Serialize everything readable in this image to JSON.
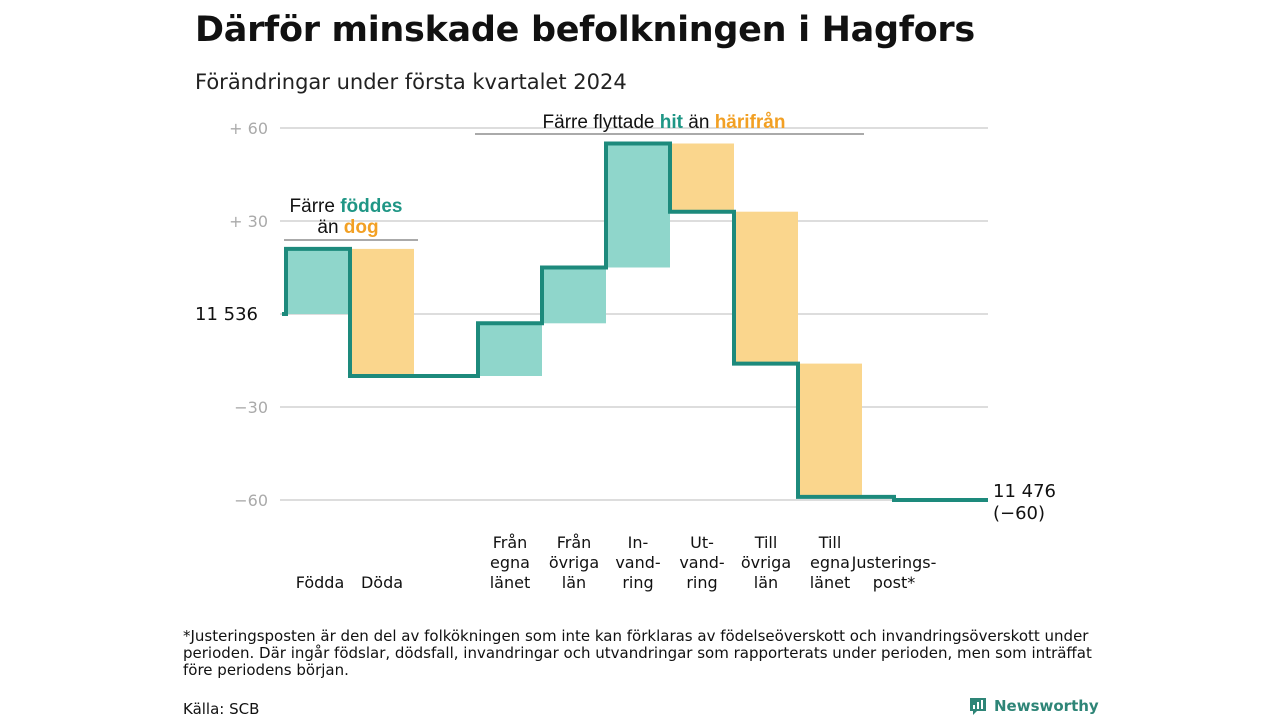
{
  "title": "Därför minskade befolkningen i Hagfors",
  "subtitle": "Förändringar under första kvartalet 2024",
  "footnote": "*Justeringsposten är den del av folkökningen som inte kan förklaras av födelseöverskott och invandringsöverskott under perioden. Där ingår födslar, dödsfall, invandringar och utvandringar som rapporterats under perioden, men som inträffat före periodens början.",
  "source": "Källa: SCB",
  "brand": "Newsworthy",
  "colors": {
    "increase_fill": "#8fd6cb",
    "decrease_fill": "#fad68d",
    "line": "#1d8a7c",
    "teal_text": "#1f9685",
    "orange_text": "#f2a024",
    "grid": "#dddddd",
    "tick": "#aaaaaa"
  },
  "chart_data": {
    "type": "waterfall",
    "start_value": 11536,
    "start_label": "11  536",
    "end_label": [
      "11 476",
      "(−60)"
    ],
    "ylim": [
      -60,
      60
    ],
    "yticks": [
      {
        "value": 60,
        "label": "+  60"
      },
      {
        "value": 30,
        "label": "+  30"
      },
      {
        "value": 0,
        "label": ""
      },
      {
        "value": -30,
        "label": "−30"
      },
      {
        "value": -60,
        "label": "−60"
      }
    ],
    "steps": [
      {
        "label": [
          "Födda"
        ],
        "change": 21,
        "type": "increase"
      },
      {
        "label": [
          "Döda"
        ],
        "change": -41,
        "type": "decrease"
      },
      {
        "label": [],
        "change": 0,
        "type": "none"
      },
      {
        "label": [
          "Från",
          "egna",
          "länet"
        ],
        "change": 17,
        "type": "increase"
      },
      {
        "label": [
          "Från",
          "övriga",
          "län"
        ],
        "change": 18,
        "type": "increase"
      },
      {
        "label": [
          "In-",
          "vand-",
          "ring"
        ],
        "change": 40,
        "type": "increase"
      },
      {
        "label": [
          "Ut-",
          "vand-",
          "ring"
        ],
        "change": -22,
        "type": "decrease"
      },
      {
        "label": [
          "Till",
          "övriga",
          "län"
        ],
        "change": -49,
        "type": "decrease"
      },
      {
        "label": [
          "Till",
          "egna",
          "länet"
        ],
        "change": -43,
        "type": "decrease"
      },
      {
        "label": [
          "Justerings-",
          "post*"
        ],
        "change": -1,
        "type": "adjustment"
      }
    ],
    "annotations": [
      {
        "parts": [
          {
            "text": "Färre ",
            "color": "plain"
          },
          {
            "text": "föddes",
            "color": "teal"
          }
        ],
        "parts2": [
          {
            "text": "än ",
            "color": "plain"
          },
          {
            "text": "dog",
            "color": "orange"
          }
        ]
      },
      {
        "parts": [
          {
            "text": "Färre flyttade ",
            "color": "plain"
          },
          {
            "text": "hit",
            "color": "teal"
          },
          {
            "text": " än ",
            "color": "plain"
          },
          {
            "text": "härifrån",
            "color": "orange"
          }
        ]
      }
    ]
  }
}
